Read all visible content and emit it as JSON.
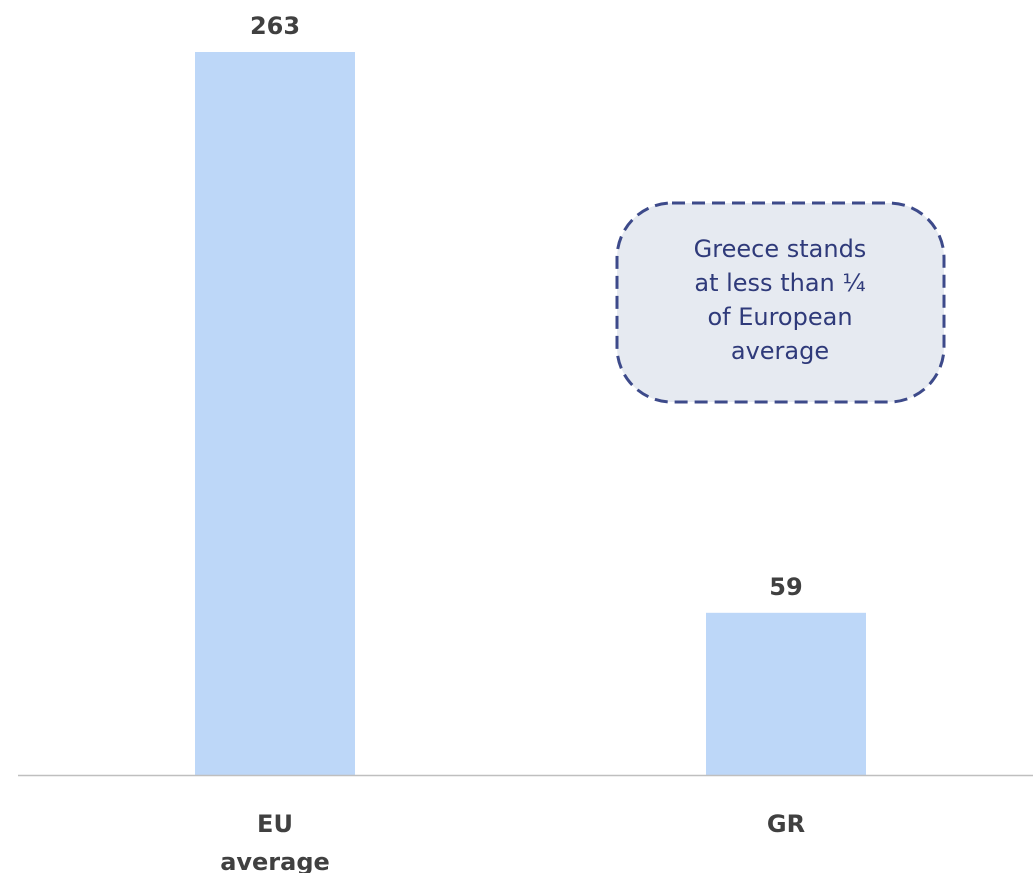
{
  "chart_data": {
    "type": "bar",
    "categories": [
      [
        "EU",
        "average"
      ],
      [
        "GR"
      ]
    ],
    "values": [
      263,
      59
    ],
    "value_labels": [
      "263",
      "59"
    ],
    "ylim": [
      0,
      263
    ],
    "grid": false,
    "legend": "none",
    "bar_color": "#bdd7f8",
    "axis_color": "#bfbfbf",
    "label_color": "#404040",
    "annotation": {
      "lines": [
        "Greece stands",
        "at less than ¼",
        "of European",
        "average"
      ],
      "fill_color": "#e6eaf1",
      "border_color": "#3d4a8a",
      "text_color": "#2f3a7a"
    }
  }
}
